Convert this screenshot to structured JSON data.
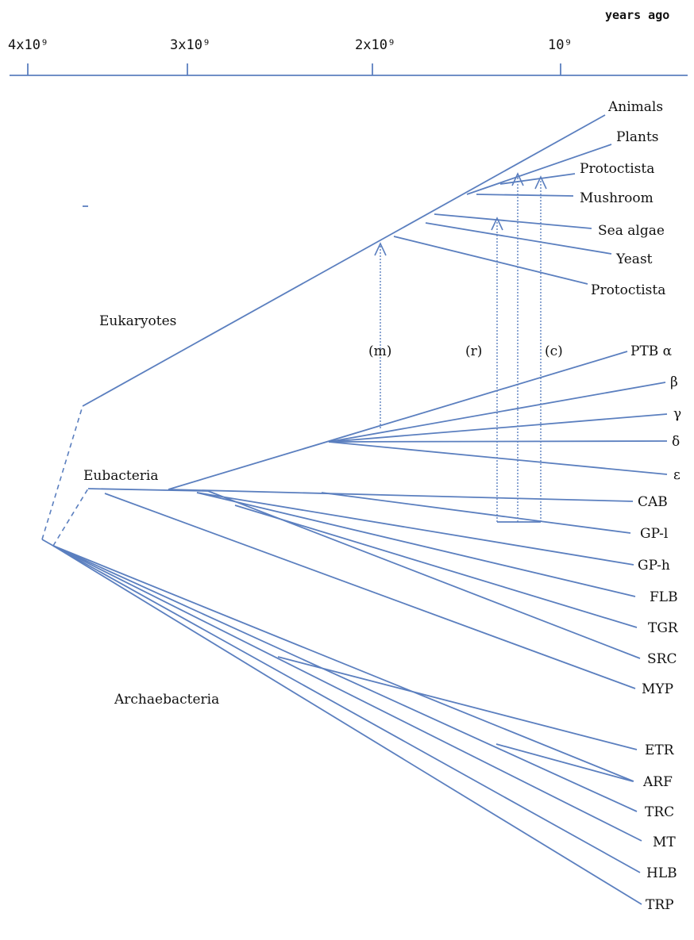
{
  "timeline": {
    "unit_label": "years ago",
    "ticks": [
      "4x10⁹",
      "3x10⁹",
      "2x10⁹",
      "10⁹"
    ]
  },
  "groups": {
    "eukaryotes": "Eukaryotes",
    "eubacteria": "Eubacteria",
    "archaebacteria": "Archaebacteria"
  },
  "events": {
    "m": "(m)",
    "r": "(r)",
    "c": "(c)"
  },
  "taxa": {
    "eukaryotes": [
      "Animals",
      "Plants",
      "Protoctista",
      "Mushroom",
      "Sea algae",
      "Yeast",
      "Protoctista"
    ],
    "eubacteria": [
      "PTB α",
      "β",
      "γ",
      "δ",
      "ε",
      "CAB",
      "GP-l",
      "GP-h",
      "FLB",
      "TGR",
      "SRC",
      "MYP"
    ],
    "archaebacteria": [
      "ETR",
      "ARF",
      "TRC",
      "MT",
      "HLB",
      "TRP"
    ]
  }
}
